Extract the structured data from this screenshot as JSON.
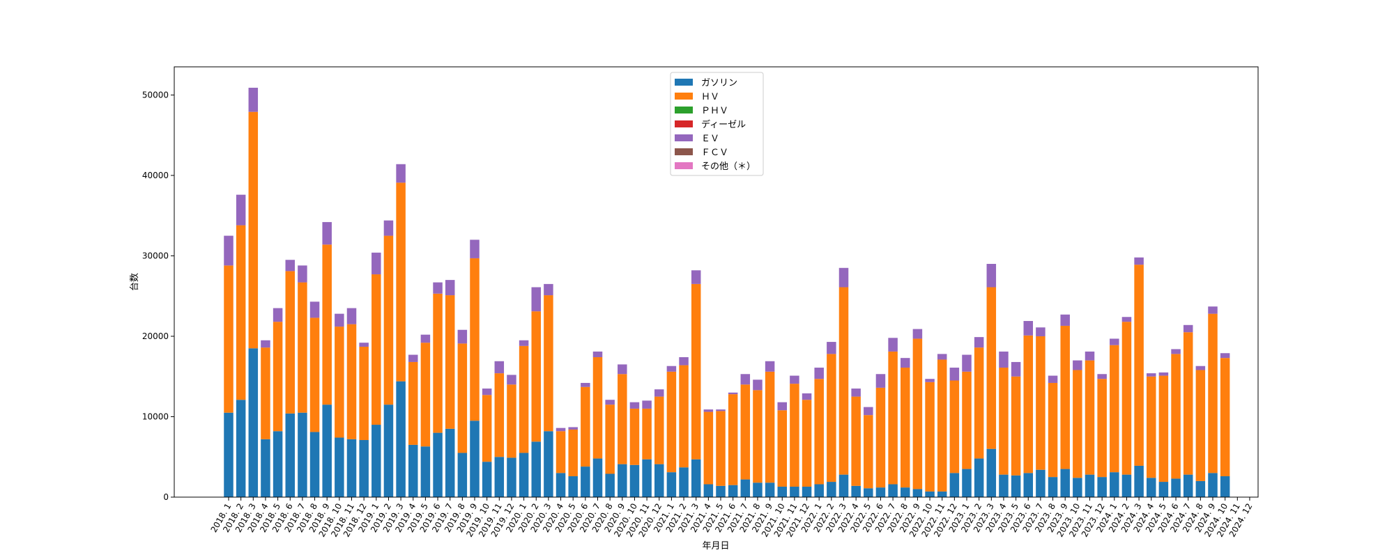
{
  "chart_data": {
    "type": "bar",
    "stacked": true,
    "title": "",
    "xlabel": "年月日",
    "ylabel": "台数",
    "ylim": [
      0,
      53500
    ],
    "yticks": [
      0,
      10000,
      20000,
      30000,
      40000,
      50000
    ],
    "grid": false,
    "legend_position": "top-center",
    "categories": [
      "2018. 1",
      "2018. 2",
      "2018. 3",
      "2018. 4",
      "2018. 5",
      "2018. 6",
      "2018. 7",
      "2018. 8",
      "2018. 9",
      "2018. 10",
      "2018. 11",
      "2018. 12",
      "2019. 1",
      "2019. 2",
      "2019. 3",
      "2019. 4",
      "2019. 5",
      "2019. 6",
      "2019. 7",
      "2019. 8",
      "2019. 9",
      "2019. 10",
      "2019. 11",
      "2019. 12",
      "2020. 1",
      "2020. 2",
      "2020. 3",
      "2020. 4",
      "2020. 5",
      "2020. 6",
      "2020. 7",
      "2020. 8",
      "2020. 9",
      "2020. 10",
      "2020. 11",
      "2020. 12",
      "2021. 1",
      "2021. 2",
      "2021. 3",
      "2021. 4",
      "2021. 5",
      "2021. 6",
      "2021. 7",
      "2021. 8",
      "2021. 9",
      "2021. 10",
      "2021. 11",
      "2021. 12",
      "2022. 1",
      "2022. 2",
      "2022. 3",
      "2022. 4",
      "2022. 5",
      "2022. 6",
      "2022. 7",
      "2022. 8",
      "2022. 9",
      "2022. 10",
      "2022. 11",
      "2022. 12",
      "2023. 1",
      "2023. 2",
      "2023. 3",
      "2023. 4",
      "2023. 5",
      "2023. 6",
      "2023. 7",
      "2023. 8",
      "2023. 9",
      "2023. 10",
      "2023. 11",
      "2023. 12",
      "2024. 1",
      "2024. 2",
      "2024. 3",
      "2024. 4",
      "2024. 5",
      "2024. 6",
      "2024. 7",
      "2024. 8",
      "2024. 9",
      "2024. 10",
      "2024. 11",
      "2024. 12"
    ],
    "series": [
      {
        "name": "ガソリン",
        "color": "#1f77b4",
        "values": [
          10500,
          12100,
          18500,
          7200,
          8200,
          10400,
          10500,
          8100,
          11500,
          7400,
          7200,
          7100,
          9000,
          11500,
          14400,
          6500,
          6300,
          8000,
          8500,
          5500,
          9500,
          4400,
          5000,
          4900,
          5500,
          6900,
          8200,
          3000,
          2600,
          3800,
          4800,
          2900,
          4100,
          4000,
          4700,
          4100,
          3100,
          3700,
          4700,
          1600,
          1400,
          1500,
          2200,
          1800,
          1800,
          1300,
          1300,
          1300,
          1600,
          1900,
          2800,
          1400,
          1100,
          1200,
          1600,
          1200,
          1000,
          700,
          700,
          3000,
          3500,
          4800,
          6000,
          2800,
          2700,
          3000,
          3400,
          2500,
          3500,
          2400,
          2800,
          2500,
          3100,
          2800,
          3900,
          2400,
          1900,
          2300,
          2800,
          2000,
          3000,
          2600,
          0,
          0
        ]
      },
      {
        "name": "ＨＶ",
        "color": "#ff7f0e",
        "values": [
          18300,
          21700,
          29400,
          11400,
          13600,
          17700,
          16200,
          14200,
          19900,
          13800,
          14300,
          11600,
          18700,
          21000,
          24700,
          10300,
          12900,
          17300,
          16600,
          13600,
          20200,
          8300,
          10400,
          9100,
          13300,
          16200,
          16900,
          5200,
          5800,
          9900,
          12600,
          8600,
          11200,
          7000,
          6300,
          8400,
          12500,
          12700,
          21800,
          9000,
          9300,
          11300,
          11800,
          11500,
          13800,
          9500,
          12800,
          10800,
          13100,
          15900,
          23300,
          11100,
          9100,
          12400,
          16500,
          14900,
          18700,
          13600,
          16400,
          11500,
          12100,
          13800,
          20100,
          13300,
          12300,
          17100,
          16600,
          11700,
          17800,
          13400,
          14200,
          12200,
          15800,
          19000,
          25000,
          12600,
          13200,
          15500,
          17700,
          13800,
          19800,
          14700,
          0,
          0
        ]
      },
      {
        "name": "ＰＨＶ",
        "color": "#2ca02c",
        "values": [
          0,
          0,
          0,
          0,
          0,
          0,
          0,
          0,
          0,
          0,
          0,
          0,
          0,
          0,
          0,
          0,
          0,
          0,
          0,
          0,
          0,
          0,
          0,
          0,
          0,
          0,
          0,
          0,
          0,
          0,
          0,
          0,
          0,
          0,
          0,
          0,
          0,
          0,
          0,
          0,
          0,
          0,
          0,
          0,
          0,
          0,
          0,
          0,
          0,
          0,
          0,
          0,
          0,
          0,
          0,
          0,
          0,
          0,
          0,
          0,
          0,
          0,
          0,
          0,
          0,
          0,
          0,
          0,
          0,
          0,
          0,
          0,
          0,
          0,
          0,
          0,
          0,
          0,
          0,
          0,
          0,
          0,
          0,
          0
        ]
      },
      {
        "name": "ディーゼル",
        "color": "#d62728",
        "values": [
          0,
          0,
          0,
          0,
          0,
          0,
          0,
          0,
          0,
          0,
          0,
          0,
          0,
          0,
          0,
          0,
          0,
          0,
          0,
          0,
          0,
          0,
          0,
          0,
          0,
          0,
          0,
          0,
          0,
          0,
          0,
          0,
          0,
          0,
          0,
          0,
          0,
          0,
          0,
          0,
          0,
          0,
          0,
          0,
          0,
          0,
          0,
          0,
          0,
          0,
          0,
          0,
          0,
          0,
          0,
          0,
          0,
          0,
          0,
          0,
          0,
          0,
          0,
          0,
          0,
          0,
          0,
          0,
          0,
          0,
          0,
          0,
          0,
          0,
          0,
          0,
          0,
          0,
          0,
          0,
          0,
          0,
          0,
          0
        ]
      },
      {
        "name": "ＥＶ",
        "color": "#9467bd",
        "values": [
          3700,
          3800,
          3000,
          900,
          1700,
          1400,
          2100,
          2000,
          2800,
          1600,
          2000,
          500,
          2700,
          1900,
          2300,
          900,
          1000,
          1400,
          1900,
          1700,
          2300,
          800,
          1500,
          1200,
          700,
          3000,
          1400,
          400,
          300,
          500,
          700,
          600,
          1200,
          800,
          1000,
          900,
          700,
          1000,
          1700,
          300,
          200,
          200,
          1300,
          1300,
          1300,
          1000,
          1000,
          800,
          1400,
          1500,
          2400,
          1000,
          1000,
          1700,
          1700,
          1200,
          1200,
          400,
          700,
          1600,
          2100,
          1300,
          2900,
          2000,
          1800,
          1800,
          1100,
          900,
          1400,
          1200,
          1100,
          600,
          800,
          600,
          900,
          400,
          400,
          600,
          900,
          500,
          900,
          600,
          0,
          0
        ]
      },
      {
        "name": "ＦＣＶ",
        "color": "#8c564b",
        "values": [
          0,
          0,
          0,
          0,
          0,
          0,
          0,
          0,
          0,
          0,
          0,
          0,
          0,
          0,
          0,
          0,
          0,
          0,
          0,
          0,
          0,
          0,
          0,
          0,
          0,
          0,
          0,
          0,
          0,
          0,
          0,
          0,
          0,
          0,
          0,
          0,
          0,
          0,
          0,
          0,
          0,
          0,
          0,
          0,
          0,
          0,
          0,
          0,
          0,
          0,
          0,
          0,
          0,
          0,
          0,
          0,
          0,
          0,
          0,
          0,
          0,
          0,
          0,
          0,
          0,
          0,
          0,
          0,
          0,
          0,
          0,
          0,
          0,
          0,
          0,
          0,
          0,
          0,
          0,
          0,
          0,
          0,
          0,
          0
        ]
      },
      {
        "name": "その他（＊）",
        "color": "#e377c2",
        "values": [
          0,
          0,
          0,
          0,
          0,
          0,
          0,
          0,
          0,
          0,
          0,
          0,
          0,
          0,
          0,
          0,
          0,
          0,
          0,
          0,
          0,
          0,
          0,
          0,
          0,
          0,
          0,
          0,
          0,
          0,
          0,
          0,
          0,
          0,
          0,
          0,
          0,
          0,
          0,
          0,
          0,
          0,
          0,
          0,
          0,
          0,
          0,
          0,
          0,
          0,
          0,
          0,
          0,
          0,
          0,
          0,
          0,
          0,
          0,
          0,
          0,
          0,
          0,
          0,
          0,
          0,
          0,
          0,
          0,
          0,
          0,
          0,
          0,
          0,
          0,
          0,
          0,
          0,
          0,
          0,
          0,
          0,
          0,
          0
        ]
      }
    ]
  }
}
